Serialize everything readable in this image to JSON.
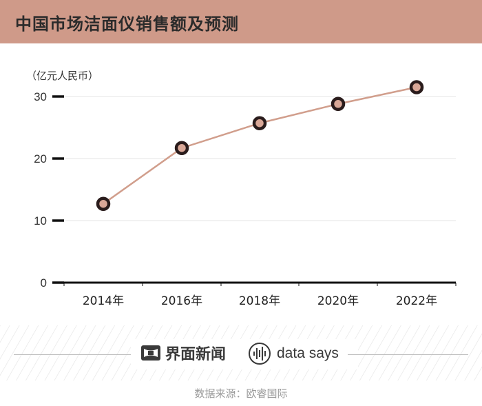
{
  "header": {
    "title": "中国市场洁面仪销售额及预测"
  },
  "chart_data": {
    "type": "line",
    "unit_label": "（亿元人民币）",
    "categories": [
      "2014年",
      "2016年",
      "2018年",
      "2020年",
      "2022年"
    ],
    "values": [
      12.7,
      21.7,
      25.7,
      28.8,
      31.5
    ],
    "yticks": [
      0,
      10,
      20,
      30
    ],
    "ylim": [
      0,
      30
    ],
    "grid": true,
    "colors": {
      "line": "#d19e8c",
      "marker_fill": "#d9a797",
      "marker_stroke": "#2a1c1c"
    }
  },
  "footer": {
    "brand1": "界面新闻",
    "brand2": "data says",
    "source": "数据来源：欧睿国际",
    "brand1_icon": "jiemian-logo-icon",
    "brand2_icon": "waveform-circle-icon"
  }
}
